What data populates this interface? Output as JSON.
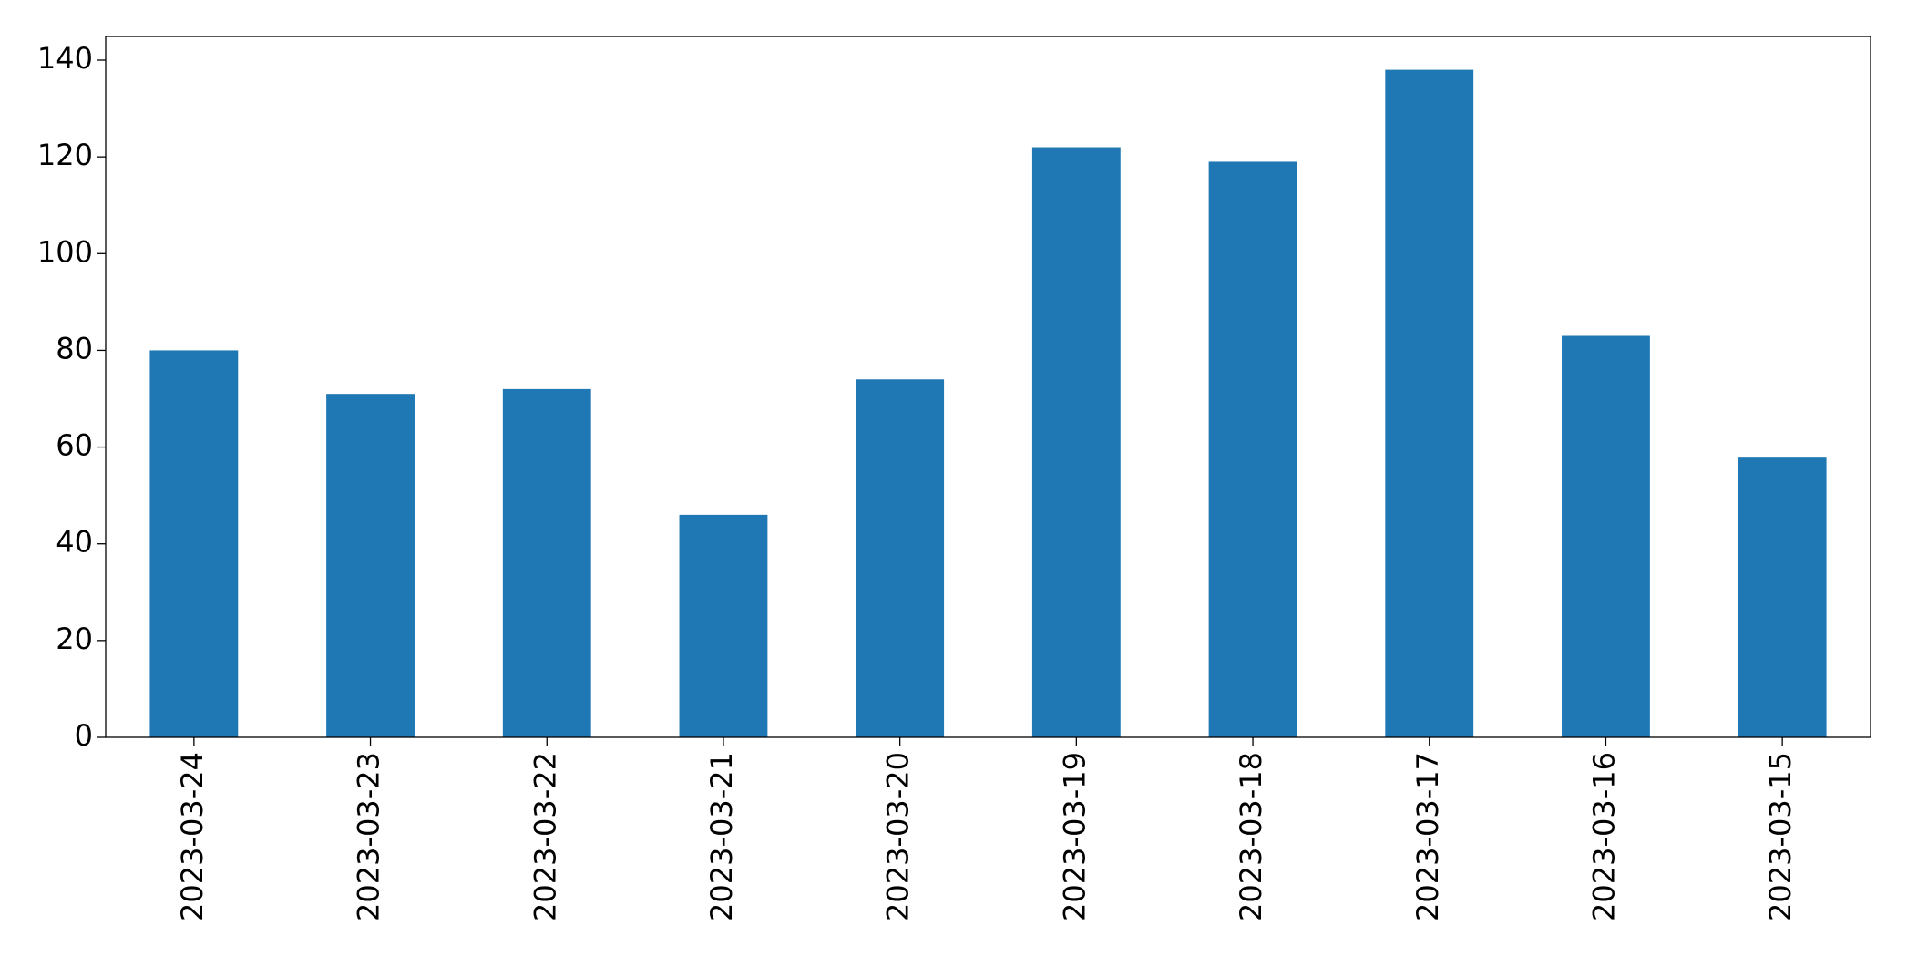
{
  "chart_data": {
    "type": "bar",
    "categories": [
      "2023-03-24",
      "2023-03-23",
      "2023-03-22",
      "2023-03-21",
      "2023-03-20",
      "2023-03-19",
      "2023-03-18",
      "2023-03-17",
      "2023-03-16",
      "2023-03-15"
    ],
    "values": [
      80,
      71,
      72,
      46,
      74,
      122,
      119,
      138,
      83,
      58
    ],
    "color": "#1f77b4",
    "ylim": [
      0,
      144.9
    ],
    "yticks": [
      0,
      20,
      40,
      60,
      80,
      100,
      120,
      140
    ],
    "grid": false
  }
}
